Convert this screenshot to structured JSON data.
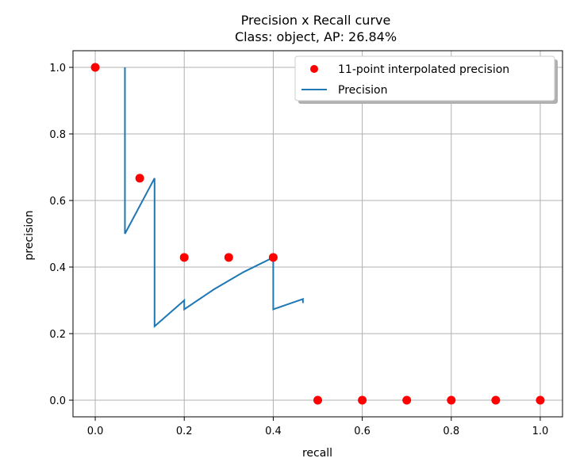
{
  "chart_data": {
    "type": "line",
    "title_line1": "Precision x Recall curve",
    "title_line2": "Class: object, AP: 26.84%",
    "xlabel": "recall",
    "ylabel": "precision",
    "xlim": [
      -0.05,
      1.05
    ],
    "ylim": [
      -0.05,
      1.05
    ],
    "xticks": [
      0.0,
      0.2,
      0.4,
      0.6,
      0.8,
      1.0
    ],
    "yticks": [
      0.0,
      0.2,
      0.4,
      0.6,
      0.8,
      1.0
    ],
    "xtick_labels": [
      "0.0",
      "0.2",
      "0.4",
      "0.6",
      "0.8",
      "1.0"
    ],
    "ytick_labels": [
      "0.0",
      "0.2",
      "0.4",
      "0.6",
      "0.8",
      "1.0"
    ],
    "grid": true,
    "legend_position": "top-right",
    "series": [
      {
        "name": "11-point interpolated precision",
        "kind": "scatter",
        "color": "#ff0000",
        "x": [
          0.0,
          0.1,
          0.2,
          0.3,
          0.4,
          0.5,
          0.6,
          0.7,
          0.8,
          0.9,
          1.0
        ],
        "y": [
          1.0,
          0.667,
          0.429,
          0.429,
          0.429,
          0.0,
          0.0,
          0.0,
          0.0,
          0.0,
          0.0
        ]
      },
      {
        "name": "Precision",
        "kind": "line",
        "color": "#1f77b4",
        "x": [
          0.0667,
          0.0667,
          0.1333,
          0.1333,
          0.2,
          0.2,
          0.2667,
          0.3333,
          0.4,
          0.4,
          0.4667,
          0.4667
        ],
        "y": [
          1.0,
          0.5,
          0.667,
          0.222,
          0.3,
          0.273,
          0.333,
          0.385,
          0.429,
          0.273,
          0.304,
          0.292
        ]
      }
    ]
  }
}
